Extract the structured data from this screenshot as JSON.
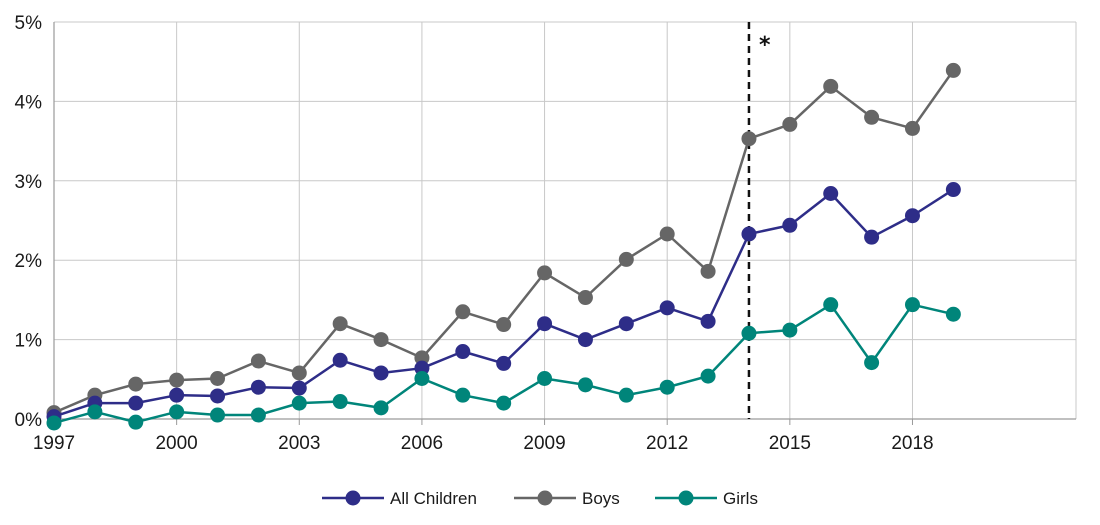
{
  "chart_data": {
    "type": "line",
    "title": "",
    "xlabel": "",
    "ylabel": "",
    "x": [
      1997,
      1998,
      1999,
      2000,
      2001,
      2002,
      2003,
      2004,
      2005,
      2006,
      2007,
      2008,
      2009,
      2010,
      2011,
      2012,
      2013,
      2014,
      2015,
      2016,
      2017,
      2018,
      2019
    ],
    "xlim": [
      1997,
      2022
    ],
    "ylim": [
      0,
      5
    ],
    "x_ticks": [
      1997,
      2000,
      2003,
      2006,
      2009,
      2012,
      2015,
      2018
    ],
    "x_tick_labels": [
      "1997",
      "2000",
      "2003",
      "2006",
      "2009",
      "2012",
      "2015",
      "2018"
    ],
    "y_ticks": [
      0,
      1,
      2,
      3,
      4,
      5
    ],
    "y_tick_labels": [
      "0%",
      "1%",
      "2%",
      "3%",
      "4%",
      "5%"
    ],
    "grid": true,
    "legend_position": "bottom",
    "series": [
      {
        "name": "All Children",
        "color": "#2e2d88",
        "values": [
          0.03,
          0.2,
          0.2,
          0.3,
          0.29,
          0.4,
          0.39,
          0.74,
          0.58,
          0.64,
          0.85,
          0.7,
          1.2,
          1.0,
          1.2,
          1.4,
          1.23,
          2.33,
          2.44,
          2.84,
          2.29,
          2.56,
          2.89
        ]
      },
      {
        "name": "Boys",
        "color": "#666666",
        "values": [
          0.08,
          0.3,
          0.44,
          0.49,
          0.51,
          0.73,
          0.58,
          1.2,
          1.0,
          0.77,
          1.35,
          1.19,
          1.84,
          1.53,
          2.01,
          2.33,
          1.86,
          3.53,
          3.71,
          4.19,
          3.8,
          3.66,
          4.39
        ]
      },
      {
        "name": "Girls",
        "color": "#00857a",
        "values": [
          -0.05,
          0.09,
          -0.04,
          0.09,
          0.05,
          0.05,
          0.2,
          0.22,
          0.14,
          0.51,
          0.3,
          0.2,
          0.51,
          0.43,
          0.3,
          0.4,
          0.54,
          1.08,
          1.12,
          1.44,
          0.71,
          1.44,
          1.32
        ]
      }
    ],
    "annotations": [
      {
        "type": "vertical-dashed-line",
        "x": 2014,
        "label": "*"
      }
    ]
  }
}
